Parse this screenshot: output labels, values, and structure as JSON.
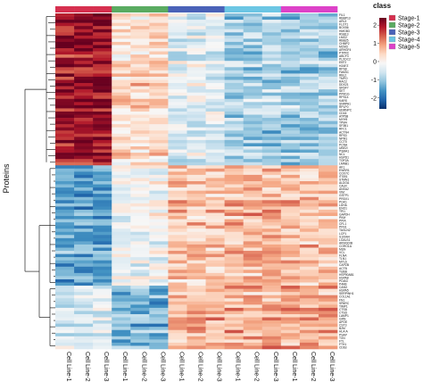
{
  "chart_data": {
    "type": "heatmap",
    "title": "",
    "ylabel": "Proteins",
    "legend_title": "class",
    "colorbar": {
      "min": -2.6,
      "max": 2.4,
      "ticks": [
        2,
        1,
        0,
        -1,
        -2
      ],
      "colors": [
        "#08306b",
        "#2166ac",
        "#4393c3",
        "#92c5de",
        "#d1e5f0",
        "#f7f7f7",
        "#fddbc7",
        "#f4a582",
        "#d6604d",
        "#b2182b",
        "#67001f"
      ]
    },
    "columns": [
      "Cell Line-1",
      "Cell Line-2",
      "Cell Line-3",
      "Cell Line-1",
      "Cell Line-2",
      "Cell Line-3",
      "Cell Line-1",
      "Cell Line-2",
      "Cell Line-3",
      "Cell Line-1",
      "Cell Line-2",
      "Cell Line-3",
      "Cell Line-1",
      "Cell Line-2",
      "Cell Line-3"
    ],
    "column_class": [
      "Stage-1",
      "Stage-1",
      "Stage-1",
      "Stage-2",
      "Stage-2",
      "Stage-2",
      "Stage-3",
      "Stage-3",
      "Stage-3",
      "Stage-4",
      "Stage-4",
      "Stage-4",
      "Stage-5",
      "Stage-5",
      "Stage-5"
    ],
    "classes": [
      {
        "name": "Stage-1",
        "color": "#d6304f"
      },
      {
        "name": "Stage-2",
        "color": "#5aab61"
      },
      {
        "name": "Stage-3",
        "color": "#4a62b8"
      },
      {
        "name": "Stage-4",
        "color": "#6cc6e4"
      },
      {
        "name": "Stage-5",
        "color": "#dd42c8"
      }
    ],
    "row_groups": [
      {
        "name": "upper cluster",
        "rows": 48,
        "stage_means": [
          2.0,
          0.35,
          -0.4,
          -0.9,
          -0.9
        ]
      },
      {
        "name": "lower cluster A",
        "rows": 38,
        "stage_means": [
          -1.5,
          -0.15,
          0.55,
          0.75,
          0.6
        ]
      },
      {
        "name": "lower cluster B",
        "rows": 20,
        "stage_means": [
          -0.5,
          -1.3,
          0.7,
          0.75,
          0.7
        ]
      }
    ],
    "row_labels": [
      "FIL1",
      "RBBP13",
      "ARL3",
      "FLOT1",
      "BOX56",
      "HMGB3",
      "RSB13",
      "LMO2",
      "RBB25",
      "CHMP2",
      "MCM3",
      "ARHGF4",
      "PTPRC",
      "ABCF3",
      "PLXDC2",
      "EEF2",
      "H2AFZ",
      "RPS8",
      "FAM3C",
      "RBL2",
      "TMPO",
      "RAC2",
      "DDX21",
      "SRSF7",
      "SET",
      "PPM1G",
      "RPS14",
      "KARS",
      "SNRPA1",
      "RPLP0",
      "HNRNPC",
      "CD44",
      "ATP5B",
      "MYH9",
      "TPM4",
      "SF3B1",
      "RFC1",
      "ACTN4",
      "RPS3",
      "NPM1",
      "CCT5",
      "PCNA",
      "UBE2I",
      "PSMA1",
      "NCL",
      "HSPD1",
      "TOP2A",
      "LMNB1",
      "AK1",
      "EWSR1",
      "COX7C",
      "ITGB1",
      "STMN1",
      "ALDOA",
      "CALR",
      "ANXA2",
      "VIM",
      "GSTP1",
      "PRDX1",
      "PGK1",
      "LDHA",
      "ENO1",
      "TPI1",
      "GAPDH",
      "PKM",
      "PPIA",
      "CFL1",
      "PFN1",
      "TAGLN2",
      "LCP1",
      "S100A4",
      "LGALS1",
      "ARHGDIB",
      "CORO1A",
      "MSN",
      "VCL",
      "FLNA",
      "TLN1",
      "MYL6",
      "CAPZB",
      "ACTB",
      "TUBB",
      "HSP90AB1",
      "HSPA8",
      "PDIA3",
      "P4HB",
      "CANX",
      "HSPA5",
      "SERPINH1",
      "COL1A1",
      "FN1",
      "SPARC",
      "TIMP1",
      "CTSB",
      "CTSD",
      "LAMP1",
      "GRN",
      "APOE",
      "CST3",
      "B2M",
      "HLA-A",
      "PSAP",
      "TXN",
      "FTL",
      "FTH1",
      "CD63"
    ]
  }
}
